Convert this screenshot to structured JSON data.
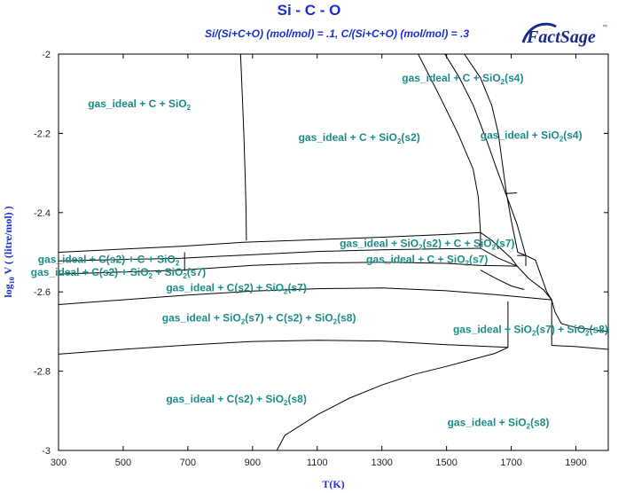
{
  "chart_data": {
    "type": "phase-diagram",
    "title": "Si - C - O",
    "subtitle": "Si/(Si+C+O) (mol/mol)  = .1,  C/(Si+C+O) (mol/mol)  = .3",
    "xlabel": "T(K)",
    "ylabel": "log10 V ( (litre/mol) )",
    "xlim": [
      300,
      2000
    ],
    "ylim": [
      -3,
      -2
    ],
    "x_ticks": [
      "300",
      "500",
      "700",
      "900",
      "1100",
      "1300",
      "1500",
      "1700",
      "1900"
    ],
    "y_ticks": [
      "-2",
      "-2.2",
      "-2.4",
      "-2.6",
      "-2.8",
      "-3"
    ],
    "regions": [
      {
        "label": "gas_ideal + C + SiO₂",
        "x": 550,
        "y": -2.125
      },
      {
        "label": "gas_ideal + C + SiO₂(s2)",
        "x": 1230,
        "y": -2.21
      },
      {
        "label": "gas_ideal + C + SiO₂(s4)",
        "x": 1550,
        "y": -2.06
      },
      {
        "label": "gas_ideal + SiO₂(s4)",
        "x": 1762,
        "y": -2.205
      },
      {
        "label": "gas_ideal + SiO₂(s2) + C + SiO₂(s7)",
        "x": 1440,
        "y": -2.478
      },
      {
        "label": "gas_ideal + C + SiO₂(s7)",
        "x": 1440,
        "y": -2.518
      },
      {
        "label": "gas_ideal + C(s2) + C + SiO₂",
        "x": 455,
        "y": -2.518
      },
      {
        "label": "gas_ideal + C(s2) + SiO₂ + SiO₂(s7)",
        "x": 485,
        "y": -2.55
      },
      {
        "label": "gas_ideal + C(s2) + SiO₂(s7)",
        "x": 850,
        "y": -2.59
      },
      {
        "label": "gas_ideal + SiO₂(s7) + C(s2) + SiO₂(s8)",
        "x": 920,
        "y": -2.665
      },
      {
        "label": "gas_ideal + SiO₂(s7) + SiO₂(s8)",
        "x": 1760,
        "y": -2.695
      },
      {
        "label": "gas_ideal + C(s2) + SiO₂(s8)",
        "x": 850,
        "y": -2.87
      },
      {
        "label": "gas_ideal + SiO₂(s8)",
        "x": 1660,
        "y": -2.93
      }
    ],
    "boundaries": [
      [
        [
          300,
          -2.5
        ],
        [
          680,
          -2.485
        ],
        [
          870,
          -2.475
        ],
        [
          1100,
          -2.468
        ],
        [
          1300,
          -2.462
        ],
        [
          1500,
          -2.455
        ],
        [
          1605,
          -2.45
        ]
      ],
      [
        [
          300,
          -2.522
        ],
        [
          680,
          -2.515
        ],
        [
          900,
          -2.506
        ],
        [
          1100,
          -2.498
        ],
        [
          1300,
          -2.494
        ],
        [
          1500,
          -2.491
        ],
        [
          1605,
          -2.49
        ]
      ],
      [
        [
          300,
          -2.555
        ],
        [
          680,
          -2.545
        ],
        [
          900,
          -2.533
        ],
        [
          1100,
          -2.527
        ],
        [
          1300,
          -2.525
        ],
        [
          1500,
          -2.528
        ],
        [
          1600,
          -2.533
        ],
        [
          1718,
          -2.535
        ]
      ],
      [
        [
          300,
          -2.632
        ],
        [
          500,
          -2.62
        ],
        [
          700,
          -2.608
        ],
        [
          900,
          -2.598
        ],
        [
          1100,
          -2.592
        ],
        [
          1300,
          -2.59
        ],
        [
          1500,
          -2.597
        ],
        [
          1650,
          -2.607
        ],
        [
          1825,
          -2.62
        ]
      ],
      [
        [
          300,
          -2.757
        ],
        [
          500,
          -2.745
        ],
        [
          700,
          -2.734
        ],
        [
          900,
          -2.725
        ],
        [
          1100,
          -2.722
        ],
        [
          1300,
          -2.724
        ],
        [
          1500,
          -2.733
        ],
        [
          1690,
          -2.74
        ]
      ],
      [
        [
          1825,
          -2.735
        ],
        [
          1900,
          -2.738
        ],
        [
          2000,
          -2.745
        ]
      ],
      [
        [
          690,
          -2.5
        ],
        [
          690,
          -2.547
        ]
      ],
      [
        [
          863,
          -2.0
        ],
        [
          868,
          -2.1
        ],
        [
          873,
          -2.2
        ],
        [
          877,
          -2.3
        ],
        [
          880,
          -2.39
        ],
        [
          881,
          -2.47
        ]
      ],
      [
        [
          1412,
          -2.0
        ],
        [
          1475,
          -2.1
        ],
        [
          1535,
          -2.2
        ],
        [
          1582,
          -2.29
        ],
        [
          1598,
          -2.36
        ],
        [
          1605,
          -2.45
        ],
        [
          1605,
          -2.49
        ]
      ],
      [
        [
          1495,
          -2.0
        ],
        [
          1540,
          -2.06
        ],
        [
          1583,
          -2.13
        ],
        [
          1625,
          -2.22
        ],
        [
          1655,
          -2.29
        ],
        [
          1683,
          -2.352
        ],
        [
          1718,
          -2.35
        ]
      ],
      [
        [
          1605,
          -2.45
        ],
        [
          1640,
          -2.47
        ],
        [
          1700,
          -2.515
        ],
        [
          1718,
          -2.535
        ]
      ],
      [
        [
          1718,
          -2.535
        ],
        [
          1755,
          -2.567
        ],
        [
          1800,
          -2.595
        ],
        [
          1825,
          -2.62
        ],
        [
          1835,
          -2.65
        ],
        [
          1855,
          -2.68
        ],
        [
          1900,
          -2.69
        ],
        [
          2000,
          -2.7
        ]
      ],
      [
        [
          1605,
          -2.49
        ],
        [
          1660,
          -2.515
        ],
        [
          1718,
          -2.535
        ]
      ],
      [
        [
          1605,
          -2.545
        ],
        [
          1650,
          -2.565
        ],
        [
          1700,
          -2.585
        ],
        [
          1740,
          -2.594
        ]
      ],
      [
        [
          1718,
          -2.508
        ],
        [
          1745,
          -2.508
        ],
        [
          1745,
          -2.535
        ]
      ],
      [
        [
          1683,
          -2.352
        ],
        [
          1718,
          -2.43
        ],
        [
          1745,
          -2.508
        ]
      ],
      [
        [
          1745,
          -2.508
        ],
        [
          1775,
          -2.52
        ],
        [
          1810,
          -2.6
        ],
        [
          1825,
          -2.62
        ]
      ],
      [
        [
          1690,
          -2.624
        ],
        [
          1690,
          -2.74
        ]
      ],
      [
        [
          1825,
          -2.62
        ],
        [
          1825,
          -2.735
        ]
      ],
      [
        [
          1555,
          -2.0
        ],
        [
          1605,
          -2.06
        ],
        [
          1640,
          -2.13
        ],
        [
          1660,
          -2.2
        ],
        [
          1670,
          -2.26
        ],
        [
          1685,
          -2.35
        ],
        [
          1700,
          -2.42
        ],
        [
          1720,
          -2.5
        ],
        [
          1745,
          -2.508
        ]
      ],
      [
        [
          1690,
          -2.74
        ],
        [
          1650,
          -2.755
        ],
        [
          1500,
          -2.788
        ],
        [
          1400,
          -2.808
        ],
        [
          1300,
          -2.835
        ],
        [
          1200,
          -2.868
        ],
        [
          1100,
          -2.91
        ],
        [
          1000,
          -2.962
        ],
        [
          975,
          -3.0
        ]
      ]
    ]
  },
  "logo": {
    "text": "FactSage",
    "mark": "™"
  }
}
